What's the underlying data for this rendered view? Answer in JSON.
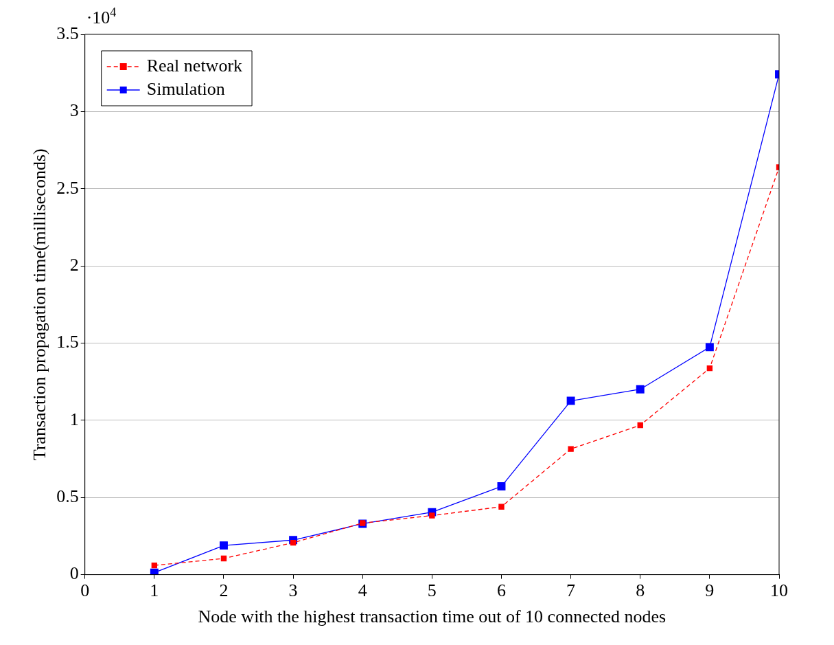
{
  "chart_data": {
    "type": "line",
    "xlabel": "Node with the highest transaction time out of 10 connected nodes",
    "ylabel": "Transaction propagation time(milliseconds)",
    "annotations": [
      "·10$^{4}$"
    ],
    "xlim": [
      0,
      10
    ],
    "xticks": [
      0,
      1,
      2,
      3,
      4,
      5,
      6,
      7,
      8,
      9,
      10
    ],
    "ylim": [
      0,
      3.5
    ],
    "yticks": [
      0,
      0.5,
      1,
      1.5,
      2,
      2.5,
      3,
      3.5
    ],
    "grid": "y",
    "legend": "top left",
    "marker": "square",
    "series": [
      {
        "name": "Real network",
        "color": "#ff0000",
        "line_style": "dashed",
        "x": [
          1,
          2,
          3,
          4,
          5,
          6,
          7,
          8,
          9,
          10
        ],
        "values": [
          0.06,
          0.105,
          0.207,
          0.334,
          0.383,
          0.44,
          0.814,
          0.968,
          1.337,
          2.639
        ]
      },
      {
        "name": "Simulation",
        "color": "#0000ff",
        "line_style": "solid",
        "x": [
          1,
          2,
          3,
          4,
          5,
          6,
          7,
          8,
          9,
          10
        ],
        "values": [
          0.013,
          0.189,
          0.224,
          0.33,
          0.405,
          0.572,
          1.126,
          1.201,
          1.474,
          3.241
        ]
      }
    ]
  }
}
